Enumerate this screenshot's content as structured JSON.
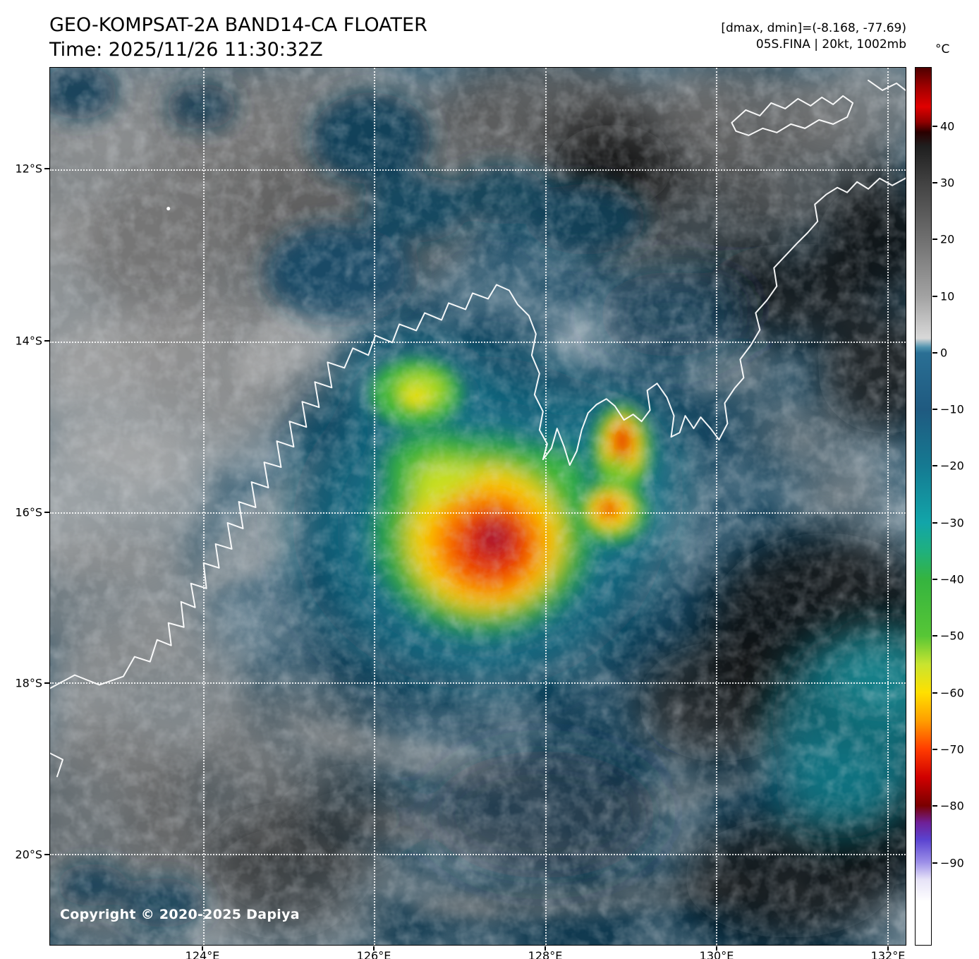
{
  "header": {
    "title": "GEO-KOMPSAT-2A BAND14-CA FLOATER",
    "time": "Time: 2025/11/26 11:30:32Z",
    "range_info": "[dmax, dmin]=(-8.168, -77.69)",
    "storm_info": "05S.FINA | 20kt, 1002mb"
  },
  "colorbar": {
    "unit": "°C",
    "ticks": [
      {
        "label": "40",
        "value": 40
      },
      {
        "label": "30",
        "value": 30
      },
      {
        "label": "20",
        "value": 20
      },
      {
        "label": "10",
        "value": 10
      },
      {
        "label": "0",
        "value": 0
      },
      {
        "label": "−10",
        "value": -10
      },
      {
        "label": "−20",
        "value": -20
      },
      {
        "label": "−30",
        "value": -30
      },
      {
        "label": "−40",
        "value": -40
      },
      {
        "label": "−50",
        "value": -50
      },
      {
        "label": "−60",
        "value": -60
      },
      {
        "label": "−70",
        "value": -70
      },
      {
        "label": "−80",
        "value": -80
      },
      {
        "label": "−90",
        "value": -90
      }
    ],
    "stops": [
      {
        "v": 50.4,
        "c": "#4f0000"
      },
      {
        "v": 47.0,
        "c": "#a00000"
      },
      {
        "v": 43.5,
        "c": "#e00000"
      },
      {
        "v": 40.8,
        "c": "#900000"
      },
      {
        "v": 39.0,
        "c": "#2a0000"
      },
      {
        "v": 36.5,
        "c": "#1f1f1f"
      },
      {
        "v": 30.0,
        "c": "#424242"
      },
      {
        "v": 20.0,
        "c": "#707070"
      },
      {
        "v": 10.0,
        "c": "#a2a2a2"
      },
      {
        "v": 4.5,
        "c": "#cbcbcb"
      },
      {
        "v": 2.6,
        "c": "#d8d8d8"
      },
      {
        "v": 1.0,
        "c": "#4f93ae"
      },
      {
        "v": 0.0,
        "c": "#2a6f94"
      },
      {
        "v": -10.0,
        "c": "#1f5a80"
      },
      {
        "v": -20.0,
        "c": "#157a92"
      },
      {
        "v": -30.0,
        "c": "#12a5a9"
      },
      {
        "v": -35.0,
        "c": "#1fb07e"
      },
      {
        "v": -40.0,
        "c": "#35b43f"
      },
      {
        "v": -50.0,
        "c": "#57c636"
      },
      {
        "v": -55.0,
        "c": "#c8e430"
      },
      {
        "v": -60.0,
        "c": "#ffe000"
      },
      {
        "v": -65.0,
        "c": "#ff9e00"
      },
      {
        "v": -70.0,
        "c": "#ff3c00"
      },
      {
        "v": -75.0,
        "c": "#d00000"
      },
      {
        "v": -80.0,
        "c": "#7a0000"
      },
      {
        "v": -83.0,
        "c": "#6f2097"
      },
      {
        "v": -86.0,
        "c": "#5a43d0"
      },
      {
        "v": -90.0,
        "c": "#9c8fe8"
      },
      {
        "v": -93.0,
        "c": "#e6e2f7"
      },
      {
        "v": -97.0,
        "c": "#ffffff"
      },
      {
        "v": -104.6,
        "c": "#ffffff"
      }
    ]
  },
  "axes": {
    "lat": [
      "12°S",
      "14°S",
      "16°S",
      "18°S",
      "20°S"
    ],
    "lon": [
      "124°E",
      "126°E",
      "128°E",
      "130°E",
      "132°E"
    ]
  },
  "footer": {
    "copyright": "Copyright © 2020-2025 Dapiya"
  }
}
